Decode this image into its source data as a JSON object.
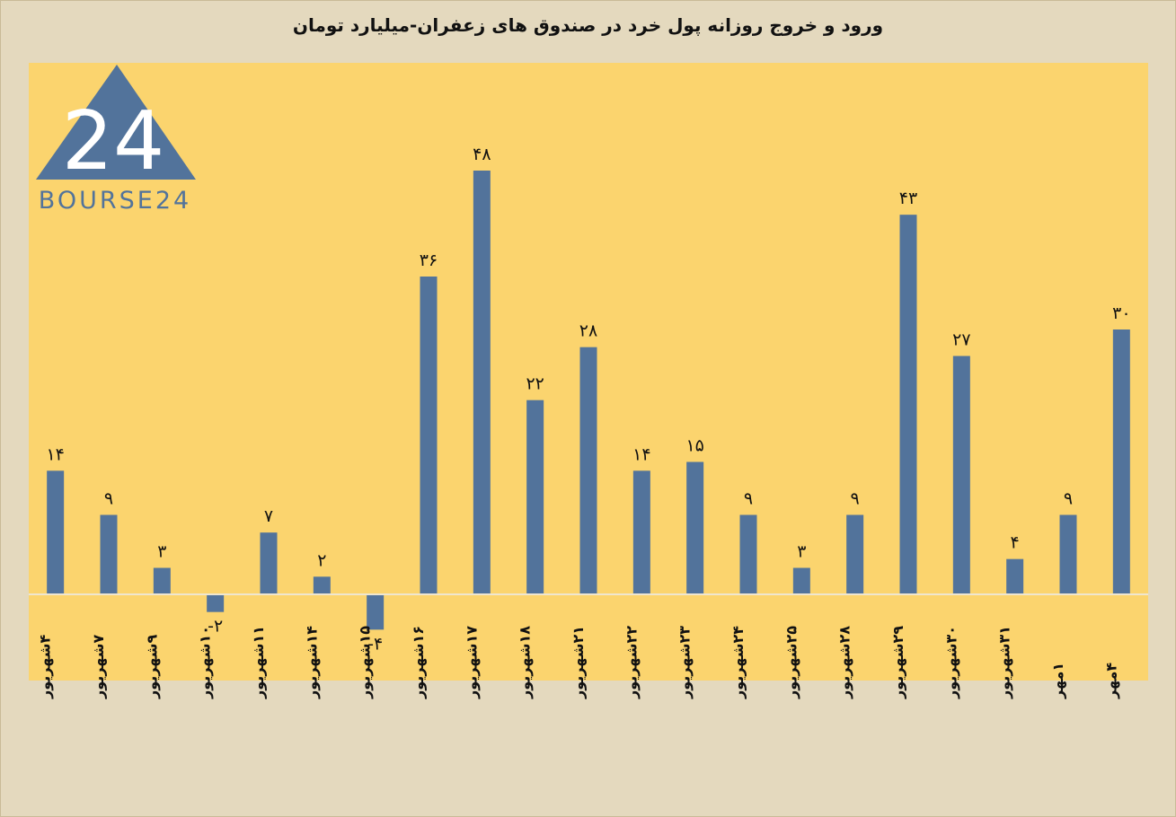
{
  "title": "ورود و خروج روزانه پول خرد در صندوق های زعفران-میلیارد تومان",
  "logo_text": "BOURSE24",
  "logo_mark": "24",
  "colors": {
    "page_background": "#e4d9be",
    "plot_background": "#fbd46e",
    "bar": "#52739b",
    "zero_line": "#efe6cf",
    "text": "#111111"
  },
  "chart_data": {
    "type": "bar",
    "title": "ورود و خروج روزانه پول خرد در صندوق های زعفران-میلیارد تومان",
    "xlabel": "",
    "ylabel": "",
    "ylim": [
      -10,
      60
    ],
    "grid": false,
    "legend": "none",
    "categories": [
      "۴شهریور",
      "۷شهریور",
      "۹شهریور",
      "۱۰شهریور",
      "۱۱شهریور",
      "۱۴شهریور",
      "۱۵شهریور",
      "۱۶شهریور",
      "۱۷شهریور",
      "۱۸شهریور",
      "۲۱شهریور",
      "۲۲شهریور",
      "۲۳شهریور",
      "۲۴شهریور",
      "۲۵شهریور",
      "۲۸شهریور",
      "۲۹شهریور",
      "۳۰شهریور",
      "۳۱شهریور",
      "۱مهر",
      "۴مهر"
    ],
    "values": [
      14,
      9,
      3,
      -2,
      7,
      2,
      -4,
      36,
      48,
      22,
      28,
      14,
      15,
      9,
      3,
      9,
      43,
      27,
      4,
      9,
      30
    ],
    "data_labels": [
      "۱۴",
      "۹",
      "۳",
      "-۲",
      "۷",
      "۲",
      "-۴",
      "۳۶",
      "۴۸",
      "۲۲",
      "۲۸",
      "۱۴",
      "۱۵",
      "۹",
      "۳",
      "۹",
      "۴۳",
      "۲۷",
      "۴",
      "۹",
      "۳۰"
    ]
  }
}
